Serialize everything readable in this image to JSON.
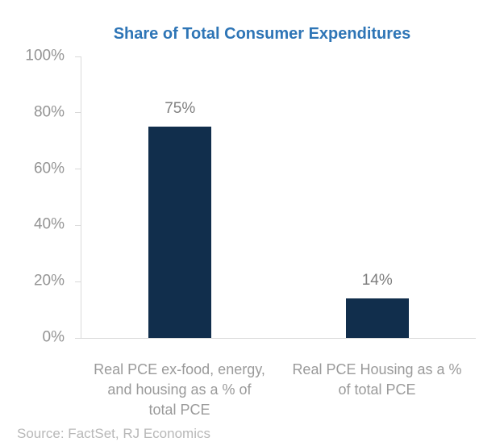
{
  "chart_data": {
    "type": "bar",
    "title": "Share of Total Consumer Expenditures",
    "categories": [
      "Real PCE ex-food, energy, and housing as a % of total PCE",
      "Real PCE Housing as a % of total PCE"
    ],
    "category_label_lines": [
      [
        "Real PCE ex-food, energy,",
        "and housing as a % of",
        "total PCE"
      ],
      [
        "Real PCE Housing as a %",
        "of total PCE"
      ]
    ],
    "values": [
      75,
      14
    ],
    "data_labels": [
      "75%",
      "14%"
    ],
    "ylim": [
      0,
      100
    ],
    "y_ticks": [
      0,
      20,
      40,
      60,
      80,
      100
    ],
    "y_tick_labels": [
      "0%",
      "20%",
      "40%",
      "60%",
      "80%",
      "100%"
    ],
    "xlabel": "",
    "ylabel": "",
    "grid": false,
    "legend": false
  },
  "colors": {
    "background": "#ffffff",
    "title": "#2e75b6",
    "bar": "#112e4c",
    "axis_line": "#d9d9d9",
    "tick_label": "#949494",
    "data_label": "#7f7f7f",
    "category_label": "#9a9a9a",
    "source": "#b8b8b8"
  },
  "source": {
    "text": "Source: FactSet, RJ Economics"
  }
}
